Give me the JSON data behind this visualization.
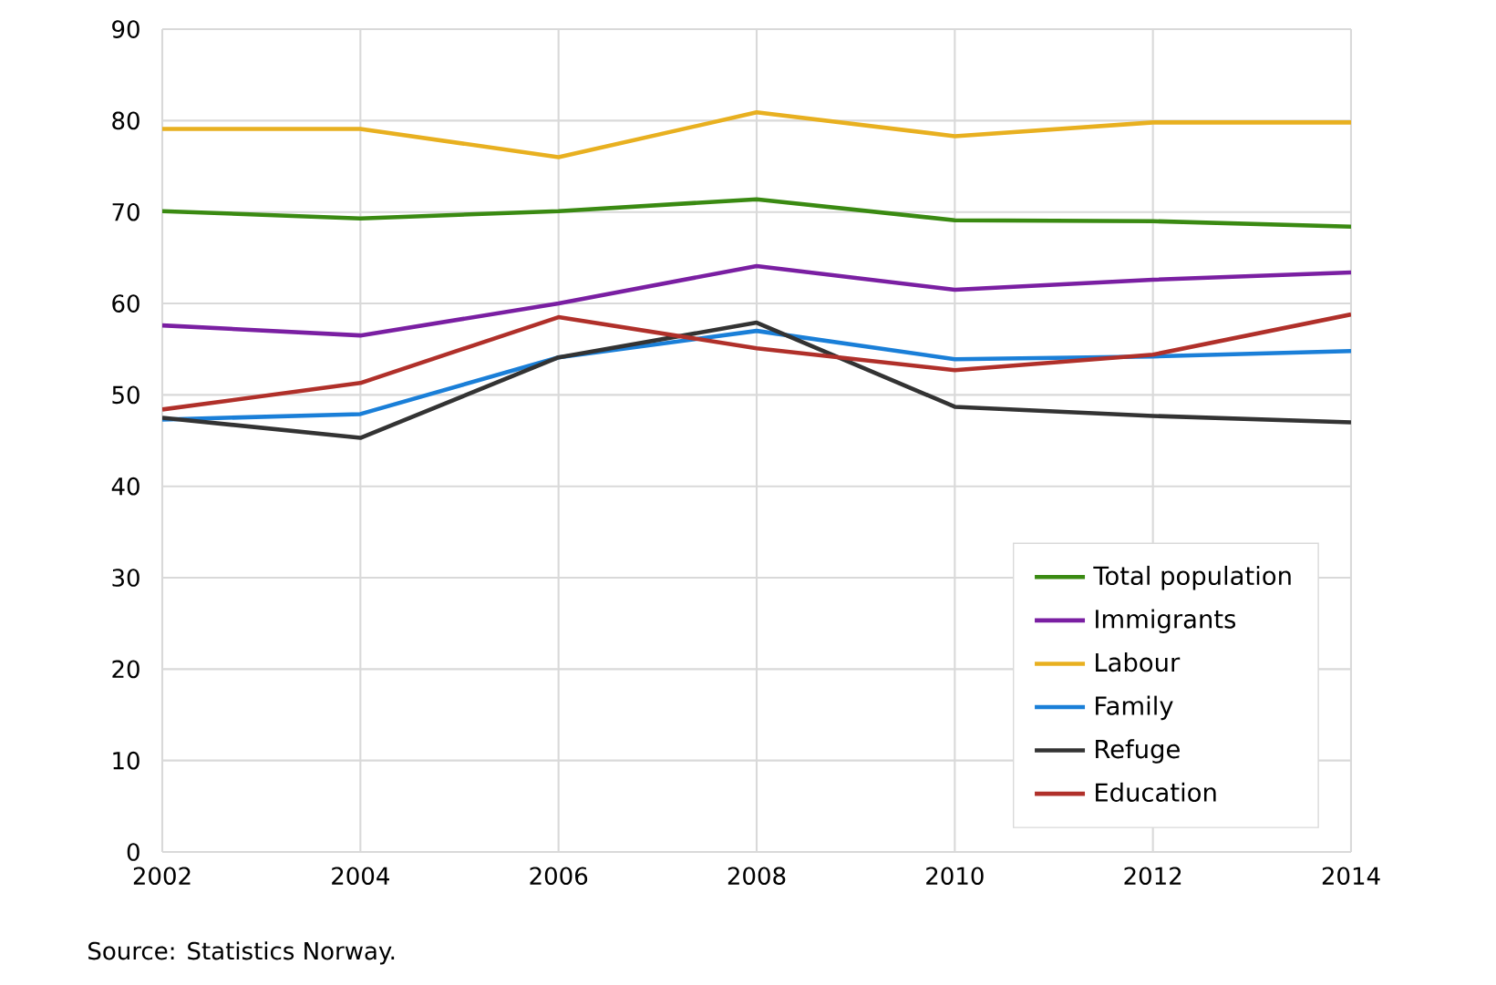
{
  "chart_data": {
    "type": "line",
    "x": [
      2002,
      2004,
      2006,
      2008,
      2010,
      2012,
      2014
    ],
    "series": [
      {
        "name": "Total population",
        "color": "#3a8a12",
        "values": [
          70.1,
          69.3,
          70.1,
          71.4,
          69.1,
          69.0,
          68.4
        ]
      },
      {
        "name": "Immigrants",
        "color": "#7a1fa2",
        "values": [
          57.6,
          56.5,
          60.0,
          64.1,
          61.5,
          62.6,
          63.4
        ]
      },
      {
        "name": "Labour",
        "color": "#e8b020",
        "values": [
          79.1,
          79.1,
          76.0,
          80.9,
          78.3,
          79.8,
          79.8
        ]
      },
      {
        "name": "Family",
        "color": "#1a7fd8",
        "values": [
          47.3,
          47.9,
          54.1,
          57.0,
          53.9,
          54.2,
          54.8
        ]
      },
      {
        "name": "Refuge",
        "color": "#333333",
        "values": [
          47.5,
          45.3,
          54.1,
          57.9,
          48.7,
          47.7,
          47.0
        ]
      },
      {
        "name": "Education",
        "color": "#b0302a",
        "values": [
          48.4,
          51.3,
          58.5,
          55.1,
          52.7,
          54.4,
          58.8
        ]
      }
    ],
    "xlim": [
      2002,
      2014
    ],
    "xticks": [
      2002,
      2004,
      2006,
      2008,
      2010,
      2012,
      2014
    ],
    "ylim": [
      0,
      90
    ],
    "yticks": [
      0,
      10,
      20,
      30,
      40,
      50,
      60,
      70,
      80,
      90
    ],
    "grid": true,
    "legend": "bottom right",
    "marker": "none",
    "line_style": "solid",
    "annotations": [
      "Source: Statistics Norway."
    ]
  }
}
